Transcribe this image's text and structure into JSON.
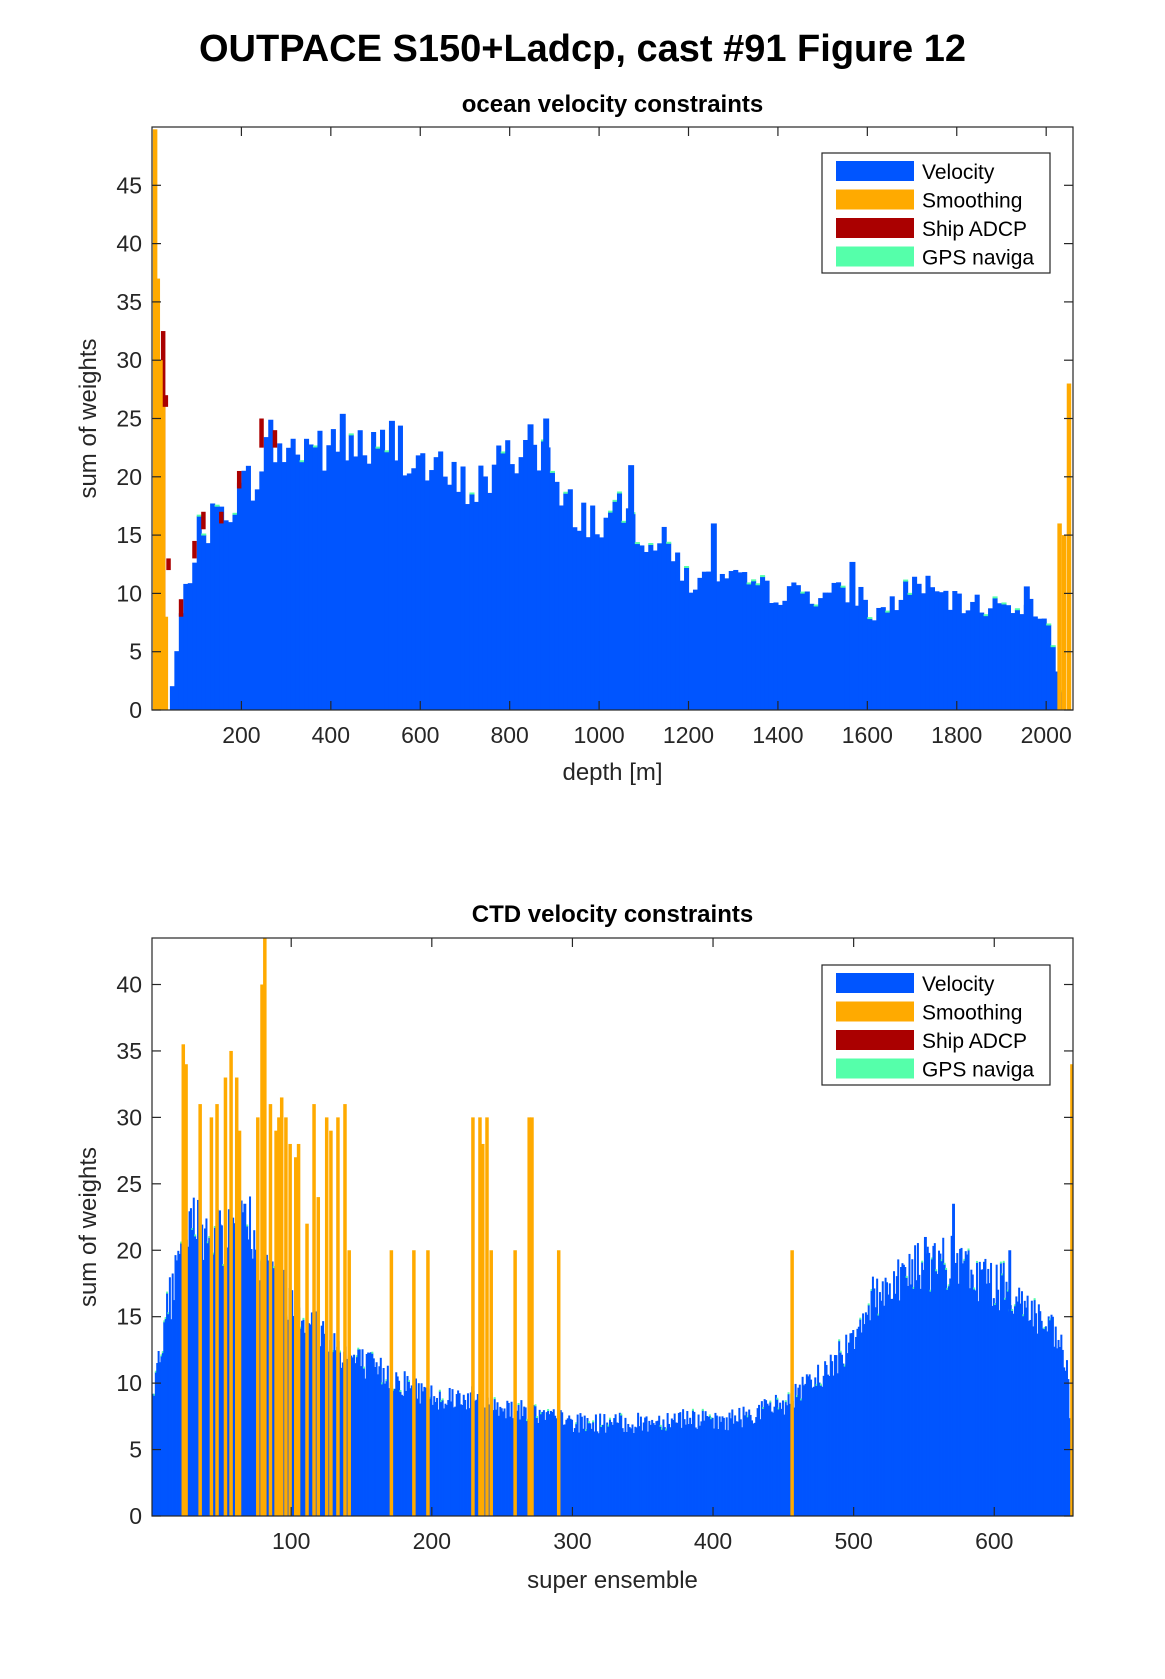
{
  "figure_title": "OUTPACE S150+Ladcp, cast #91  Figure 12",
  "colors": {
    "velocity": "#0055ff",
    "smoothing": "#ffaa00",
    "ship_adcp": "#aa0000",
    "gps": "#55ffaa"
  },
  "chart_data": [
    {
      "type": "bar",
      "stacked": true,
      "title": "ocean velocity constraints",
      "xlabel": "depth [m]",
      "ylabel": "sum of weights",
      "xlim": [
        0,
        2060
      ],
      "ylim": [
        0,
        50
      ],
      "xticks": [
        200,
        400,
        600,
        800,
        1000,
        1200,
        1400,
        1600,
        1800,
        2000
      ],
      "yticks": [
        0,
        5,
        10,
        15,
        20,
        25,
        30,
        35,
        40,
        45
      ],
      "grid": false,
      "legend_position": "top-right",
      "legend": [
        "Velocity",
        "Smoothing",
        "Ship ADCP",
        "GPS naviga"
      ],
      "bar_width": 10,
      "profile": [
        [
          0,
          0
        ],
        [
          30,
          0
        ],
        [
          40,
          2
        ],
        [
          60,
          8
        ],
        [
          80,
          12
        ],
        [
          100,
          15
        ],
        [
          150,
          17
        ],
        [
          200,
          19
        ],
        [
          240,
          21
        ],
        [
          260,
          23
        ],
        [
          300,
          22
        ],
        [
          350,
          23
        ],
        [
          400,
          22
        ],
        [
          440,
          23
        ],
        [
          500,
          22
        ],
        [
          550,
          23
        ],
        [
          600,
          21
        ],
        [
          650,
          20
        ],
        [
          700,
          19
        ],
        [
          750,
          20
        ],
        [
          800,
          22
        ],
        [
          850,
          23
        ],
        [
          880,
          22
        ],
        [
          900,
          18
        ],
        [
          950,
          17
        ],
        [
          1000,
          16
        ],
        [
          1050,
          17
        ],
        [
          1100,
          15
        ],
        [
          1150,
          14
        ],
        [
          1200,
          11
        ],
        [
          1300,
          11
        ],
        [
          1400,
          10
        ],
        [
          1500,
          10
        ],
        [
          1580,
          10
        ],
        [
          1600,
          8
        ],
        [
          1650,
          9
        ],
        [
          1700,
          11
        ],
        [
          1750,
          10
        ],
        [
          1800,
          9
        ],
        [
          1900,
          9
        ],
        [
          1950,
          9
        ],
        [
          2000,
          8
        ],
        [
          2020,
          3
        ],
        [
          2040,
          0
        ]
      ],
      "smoothing_bars": [
        {
          "x": 2,
          "v": 49.8
        },
        {
          "x": 8,
          "v": 37
        },
        {
          "x": 14,
          "v": 30
        },
        {
          "x": 20,
          "v": 26
        },
        {
          "x": 26,
          "v": 8
        },
        {
          "x": 2025,
          "v": 16
        },
        {
          "x": 2035,
          "v": 15
        },
        {
          "x": 2046,
          "v": 28
        }
      ],
      "ship_adcp_bars": [
        {
          "x": 20,
          "base": 0,
          "v": 32.5
        },
        {
          "x": 26,
          "base": 26,
          "v": 27
        },
        {
          "x": 32,
          "base": 12,
          "v": 13
        },
        {
          "x": 60,
          "base": 8,
          "v": 9.5
        },
        {
          "x": 90,
          "base": 13,
          "v": 14.5
        },
        {
          "x": 110,
          "base": 15.5,
          "v": 17
        },
        {
          "x": 150,
          "base": 16,
          "v": 17
        },
        {
          "x": 190,
          "base": 19,
          "v": 20.5
        },
        {
          "x": 240,
          "base": 22.5,
          "v": 25
        },
        {
          "x": 270,
          "base": 22.5,
          "v": 24
        }
      ],
      "spikes": [
        {
          "x": 420,
          "v": 25.4
        },
        {
          "x": 530,
          "v": 24.8
        },
        {
          "x": 840,
          "v": 24.5
        },
        {
          "x": 875,
          "v": 25
        },
        {
          "x": 1065,
          "v": 21
        },
        {
          "x": 1250,
          "v": 16
        },
        {
          "x": 1560,
          "v": 12.7
        },
        {
          "x": 1950,
          "v": 10.6
        }
      ]
    },
    {
      "type": "bar",
      "stacked": true,
      "title": "CTD velocity constraints",
      "xlabel": "super ensemble",
      "ylabel": "sum of weights",
      "xlim": [
        1,
        656
      ],
      "ylim": [
        0,
        43.5
      ],
      "xticks": [
        100,
        200,
        300,
        400,
        500,
        600
      ],
      "yticks": [
        0,
        5,
        10,
        15,
        20,
        25,
        30,
        35,
        40
      ],
      "grid": false,
      "legend_position": "top-right",
      "legend": [
        "Velocity",
        "Smoothing",
        "Ship ADCP",
        "GPS naviga"
      ],
      "bar_width": 1,
      "profile": [
        [
          1,
          9
        ],
        [
          5,
          12
        ],
        [
          10,
          15
        ],
        [
          20,
          19
        ],
        [
          30,
          22
        ],
        [
          50,
          21
        ],
        [
          70,
          22
        ],
        [
          80,
          19
        ],
        [
          100,
          16
        ],
        [
          120,
          14
        ],
        [
          140,
          12
        ],
        [
          160,
          11
        ],
        [
          180,
          10
        ],
        [
          200,
          9
        ],
        [
          220,
          9
        ],
        [
          240,
          8.5
        ],
        [
          260,
          8
        ],
        [
          280,
          7.5
        ],
        [
          300,
          7
        ],
        [
          320,
          7
        ],
        [
          350,
          7
        ],
        [
          380,
          7.5
        ],
        [
          400,
          7
        ],
        [
          420,
          7.5
        ],
        [
          450,
          8.5
        ],
        [
          470,
          10
        ],
        [
          490,
          12
        ],
        [
          500,
          14
        ],
        [
          510,
          16
        ],
        [
          530,
          18
        ],
        [
          550,
          19
        ],
        [
          570,
          19
        ],
        [
          590,
          18
        ],
        [
          610,
          17
        ],
        [
          630,
          15
        ],
        [
          645,
          13
        ],
        [
          652,
          11
        ],
        [
          655,
          0
        ]
      ],
      "smoothing_bars": [
        {
          "x": 22,
          "v": 35.5
        },
        {
          "x": 24,
          "v": 34
        },
        {
          "x": 34,
          "v": 31
        },
        {
          "x": 42,
          "v": 30
        },
        {
          "x": 46,
          "v": 31
        },
        {
          "x": 52,
          "v": 33
        },
        {
          "x": 56,
          "v": 35
        },
        {
          "x": 60,
          "v": 33
        },
        {
          "x": 62,
          "v": 29
        },
        {
          "x": 75,
          "v": 30
        },
        {
          "x": 78,
          "v": 40
        },
        {
          "x": 80,
          "v": 43.5
        },
        {
          "x": 84,
          "v": 31
        },
        {
          "x": 88,
          "v": 29
        },
        {
          "x": 90,
          "v": 30
        },
        {
          "x": 92,
          "v": 31.5
        },
        {
          "x": 95,
          "v": 30
        },
        {
          "x": 98,
          "v": 28
        },
        {
          "x": 102,
          "v": 27
        },
        {
          "x": 104,
          "v": 28
        },
        {
          "x": 110,
          "v": 22
        },
        {
          "x": 115,
          "v": 31
        },
        {
          "x": 118,
          "v": 24
        },
        {
          "x": 124,
          "v": 30
        },
        {
          "x": 127,
          "v": 29
        },
        {
          "x": 132,
          "v": 30
        },
        {
          "x": 137,
          "v": 31
        },
        {
          "x": 140,
          "v": 20
        },
        {
          "x": 170,
          "v": 20
        },
        {
          "x": 186,
          "v": 20
        },
        {
          "x": 196,
          "v": 20
        },
        {
          "x": 228,
          "v": 30
        },
        {
          "x": 233,
          "v": 30
        },
        {
          "x": 235,
          "v": 28
        },
        {
          "x": 238,
          "v": 30
        },
        {
          "x": 241,
          "v": 20
        },
        {
          "x": 258,
          "v": 20
        },
        {
          "x": 268,
          "v": 30
        },
        {
          "x": 270,
          "v": 30
        },
        {
          "x": 289,
          "v": 20
        },
        {
          "x": 455,
          "v": 20
        },
        {
          "x": 654,
          "v": 34
        }
      ],
      "spikes": [
        {
          "x": 48,
          "v": 23
        },
        {
          "x": 66,
          "v": 23.5
        },
        {
          "x": 570,
          "v": 23.5
        },
        {
          "x": 550,
          "v": 21
        },
        {
          "x": 610,
          "v": 20
        }
      ]
    }
  ]
}
